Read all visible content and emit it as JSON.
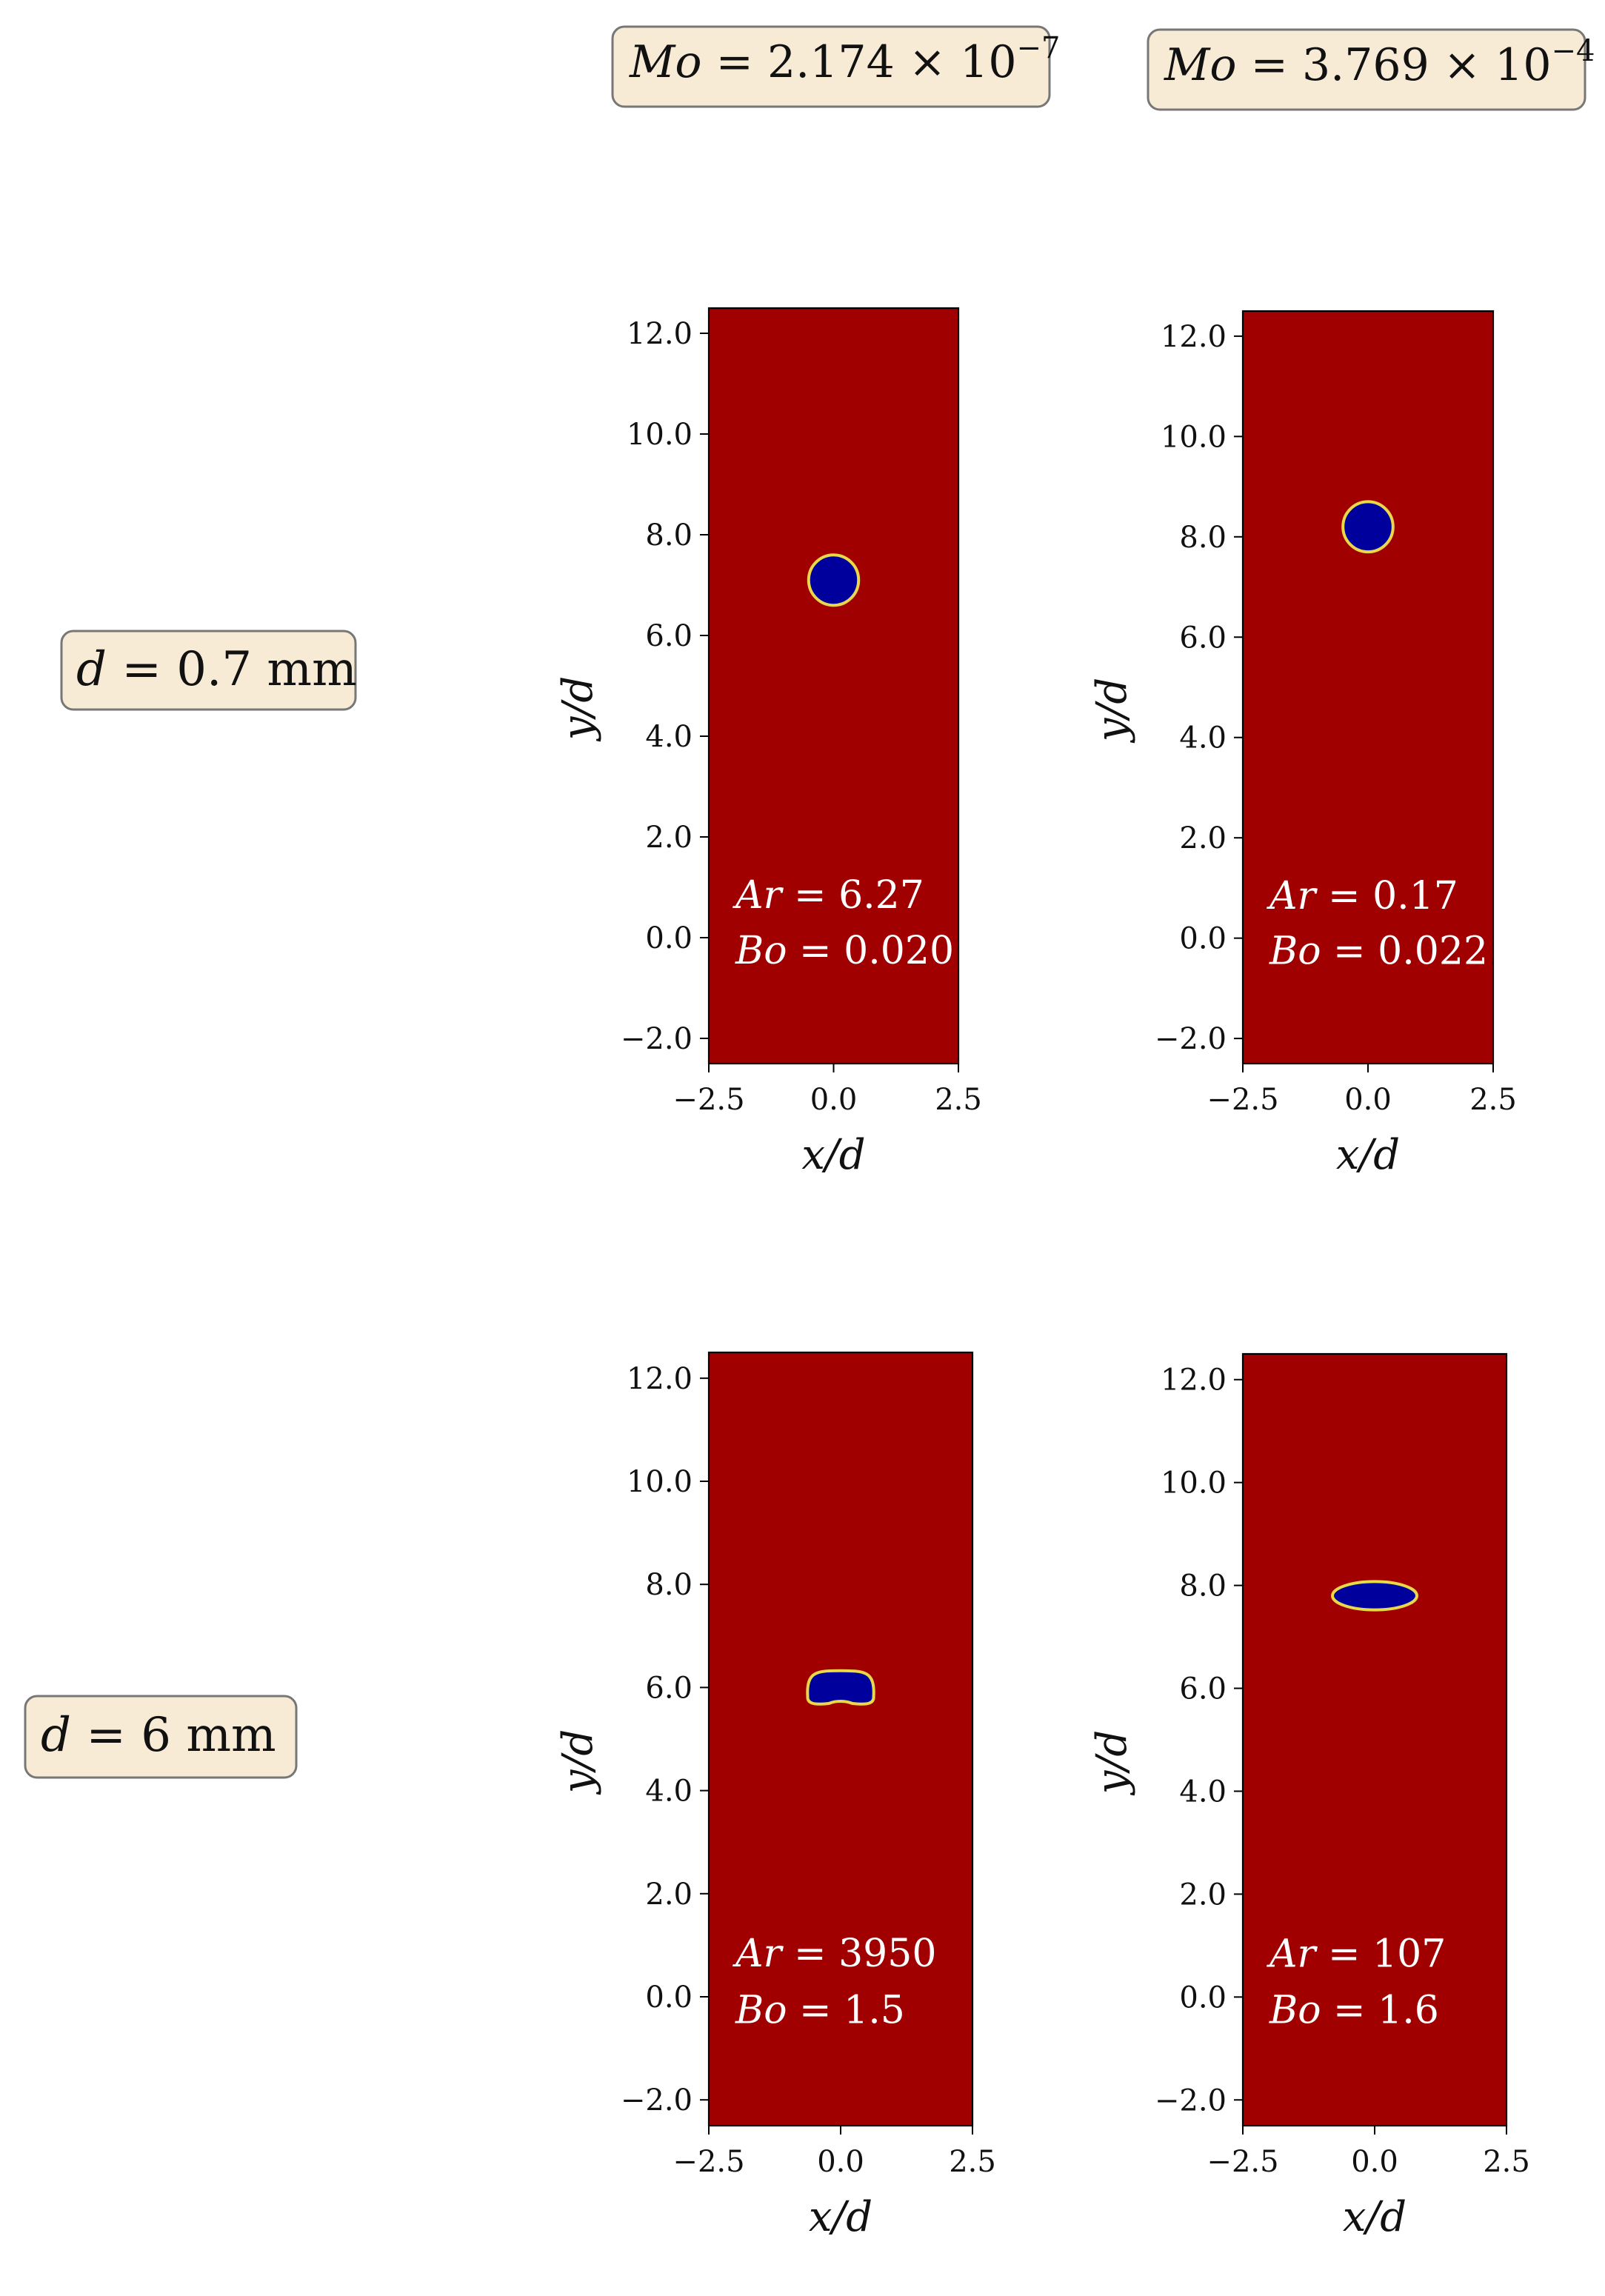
{
  "figure": {
    "column_labels": [
      {
        "var": "Mo",
        "eq": " = ",
        "mant": "2.174 × 10",
        "exp": "−7"
      },
      {
        "var": "Mo",
        "eq": " = ",
        "mant": "3.769 × 10",
        "exp": "−4"
      }
    ],
    "row_labels": [
      {
        "var": "d",
        "eq": " = ",
        "val": "0.7 mm"
      },
      {
        "var": "d",
        "eq": " = ",
        "val": "6 mm"
      }
    ]
  },
  "colors": {
    "liquid": "#a00000",
    "bubble": "#00009c",
    "rim": "#e8d84a",
    "label_box": "#f8ebd6",
    "label_border": "#777777"
  },
  "chart_data": [
    {
      "type": "heatmap",
      "row": 0,
      "col": 0,
      "xlabel": "x/d",
      "ylabel": "y/d",
      "xlim": [
        -2.5,
        2.5
      ],
      "ylim": [
        -2.5,
        12.5
      ],
      "xticks": [
        -2.5,
        0.0,
        2.5
      ],
      "xtick_labels": [
        "−2.5",
        "0.0",
        "2.5"
      ],
      "yticks": [
        -2,
        0,
        2,
        4,
        6,
        8,
        10,
        12
      ],
      "ytick_labels": [
        "−2.0",
        "0.0",
        "2.0",
        "4.0",
        "6.0",
        "8.0",
        "10.0",
        "12.0"
      ],
      "bubble": {
        "shape": "circle",
        "x": 0.0,
        "y": 7.1,
        "width": 1.0,
        "height": 1.0
      },
      "annotations": [
        {
          "var": "Ar",
          "eq": " = ",
          "val": "6.27"
        },
        {
          "var": "Bo",
          "eq": " = ",
          "val": "0.020"
        }
      ]
    },
    {
      "type": "heatmap",
      "row": 0,
      "col": 1,
      "xlabel": "x/d",
      "ylabel": "y/d",
      "xlim": [
        -2.5,
        2.5
      ],
      "ylim": [
        -2.5,
        12.5
      ],
      "xticks": [
        -2.5,
        0.0,
        2.5
      ],
      "xtick_labels": [
        "−2.5",
        "0.0",
        "2.5"
      ],
      "yticks": [
        -2,
        0,
        2,
        4,
        6,
        8,
        10,
        12
      ],
      "ytick_labels": [
        "−2.0",
        "0.0",
        "2.0",
        "4.0",
        "6.0",
        "8.0",
        "10.0",
        "12.0"
      ],
      "bubble": {
        "shape": "circle",
        "x": 0.0,
        "y": 8.2,
        "width": 1.0,
        "height": 1.0
      },
      "annotations": [
        {
          "var": "Ar",
          "eq": " = ",
          "val": "0.17"
        },
        {
          "var": "Bo",
          "eq": " = ",
          "val": "0.022"
        }
      ]
    },
    {
      "type": "heatmap",
      "row": 1,
      "col": 0,
      "xlabel": "x/d",
      "ylabel": "y/d",
      "xlim": [
        -2.5,
        2.5
      ],
      "ylim": [
        -2.5,
        12.5
      ],
      "xticks": [
        -2.5,
        0.0,
        2.5
      ],
      "xtick_labels": [
        "−2.5",
        "0.0",
        "2.5"
      ],
      "yticks": [
        -2,
        0,
        2,
        4,
        6,
        8,
        10,
        12
      ],
      "ytick_labels": [
        "−2.0",
        "0.0",
        "2.0",
        "4.0",
        "6.0",
        "8.0",
        "10.0",
        "12.0"
      ],
      "bubble": {
        "shape": "cap",
        "x": 0.0,
        "y": 6.0,
        "width": 1.25,
        "height": 0.65
      },
      "annotations": [
        {
          "var": "Ar",
          "eq": " = ",
          "val": "3950"
        },
        {
          "var": "Bo",
          "eq": " = ",
          "val": "1.5"
        }
      ]
    },
    {
      "type": "heatmap",
      "row": 1,
      "col": 1,
      "xlabel": "x/d",
      "ylabel": "y/d",
      "xlim": [
        -2.5,
        2.5
      ],
      "ylim": [
        -2.5,
        12.5
      ],
      "xticks": [
        -2.5,
        0.0,
        2.5
      ],
      "xtick_labels": [
        "−2.5",
        "0.0",
        "2.5"
      ],
      "yticks": [
        -2,
        0,
        2,
        4,
        6,
        8,
        10,
        12
      ],
      "ytick_labels": [
        "−2.0",
        "0.0",
        "2.0",
        "4.0",
        "6.0",
        "8.0",
        "10.0",
        "12.0"
      ],
      "bubble": {
        "shape": "ellipse",
        "x": 0.0,
        "y": 7.8,
        "width": 1.6,
        "height": 0.55
      },
      "annotations": [
        {
          "var": "Ar",
          "eq": " = ",
          "val": "107"
        },
        {
          "var": "Bo",
          "eq": " = ",
          "val": "1.6"
        }
      ]
    }
  ]
}
